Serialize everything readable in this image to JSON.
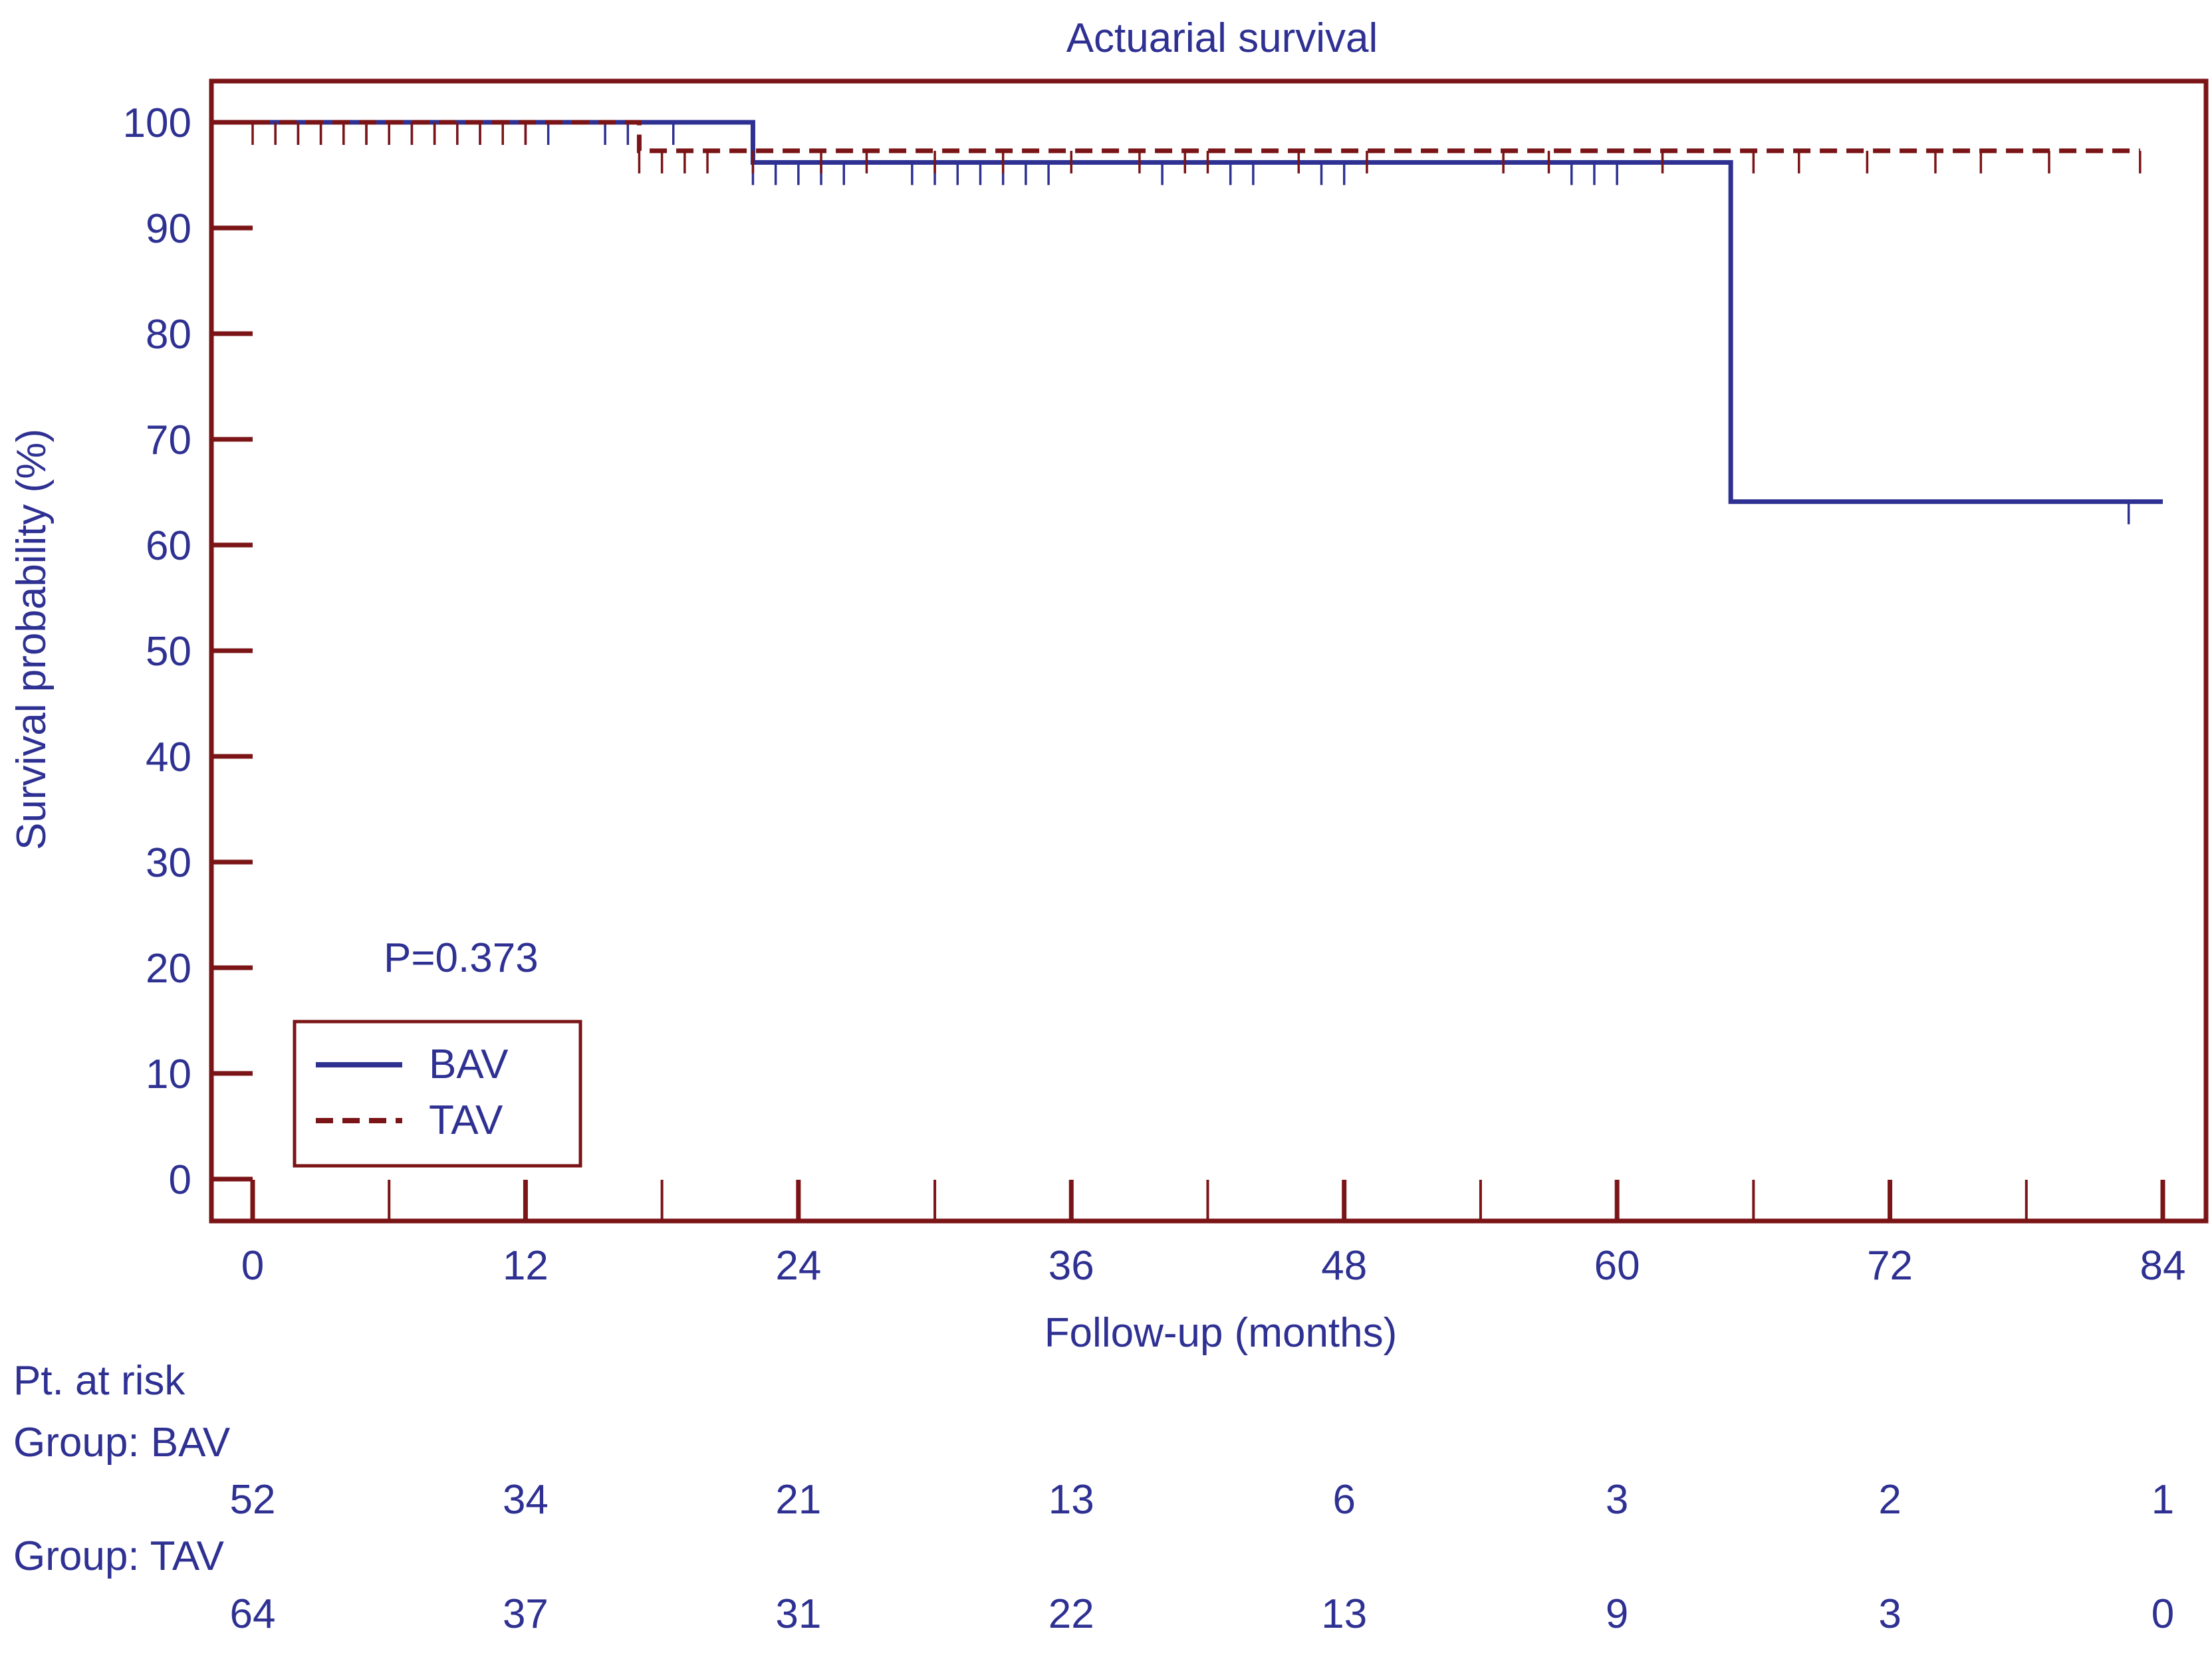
{
  "chart_data": {
    "type": "line",
    "subtype": "kaplan-meier",
    "title": "Actuarial survival",
    "xlabel": "Follow-up (months)",
    "ylabel": "Survival probability (%)",
    "xlim": [
      0,
      84
    ],
    "ylim": [
      0,
      100
    ],
    "x_ticks": [
      0,
      12,
      24,
      36,
      48,
      60,
      72,
      84
    ],
    "x_minor_ticks": [
      6,
      18,
      30,
      42,
      54,
      66,
      78
    ],
    "y_ticks": [
      0,
      10,
      20,
      30,
      40,
      50,
      60,
      70,
      80,
      90,
      100
    ],
    "grid": false,
    "annotation": "P=0.373",
    "legend": {
      "position": "bottom-left"
    },
    "series": [
      {
        "name": "BAV",
        "color": "#2e3192",
        "style": "solid",
        "steps": [
          [
            0,
            100
          ],
          [
            22,
            96.2
          ],
          [
            65,
            64.1
          ]
        ],
        "x_end": 84,
        "censored": [
          [
            1,
            100
          ],
          [
            2,
            100
          ],
          [
            3,
            100
          ],
          [
            4,
            100
          ],
          [
            5,
            100
          ],
          [
            6,
            100
          ],
          [
            7,
            100
          ],
          [
            8,
            100
          ],
          [
            9,
            100
          ],
          [
            10,
            100
          ],
          [
            11,
            100
          ],
          [
            12,
            100
          ],
          [
            13,
            100
          ],
          [
            15.5,
            100
          ],
          [
            16.5,
            100
          ],
          [
            18.5,
            100
          ],
          [
            22,
            96.2
          ],
          [
            23,
            96.2
          ],
          [
            24,
            96.2
          ],
          [
            25,
            96.2
          ],
          [
            26,
            96.2
          ],
          [
            29,
            96.2
          ],
          [
            30,
            96.2
          ],
          [
            31,
            96.2
          ],
          [
            32,
            96.2
          ],
          [
            33,
            96.2
          ],
          [
            34,
            96.2
          ],
          [
            35,
            96.2
          ],
          [
            40,
            96.2
          ],
          [
            43,
            96.2
          ],
          [
            44,
            96.2
          ],
          [
            47,
            96.2
          ],
          [
            48,
            96.2
          ],
          [
            58,
            96.2
          ],
          [
            59,
            96.2
          ],
          [
            60,
            96.2
          ],
          [
            82.5,
            64.1
          ]
        ]
      },
      {
        "name": "TAV",
        "color": "#7b1416",
        "style": "dashed",
        "steps": [
          [
            0,
            100
          ],
          [
            17,
            97.3
          ]
        ],
        "x_end": 83,
        "censored": [
          [
            0,
            100
          ],
          [
            1,
            100
          ],
          [
            2,
            100
          ],
          [
            3,
            100
          ],
          [
            4,
            100
          ],
          [
            5,
            100
          ],
          [
            6,
            100
          ],
          [
            7,
            100
          ],
          [
            8,
            100
          ],
          [
            9,
            100
          ],
          [
            10,
            100
          ],
          [
            11,
            100
          ],
          [
            12,
            100
          ],
          [
            17,
            97.3
          ],
          [
            18,
            97.3
          ],
          [
            19,
            97.3
          ],
          [
            20,
            97.3
          ],
          [
            22,
            97.3
          ],
          [
            25,
            97.3
          ],
          [
            27,
            97.3
          ],
          [
            30,
            97.3
          ],
          [
            33,
            97.3
          ],
          [
            36,
            97.3
          ],
          [
            39,
            97.3
          ],
          [
            41,
            97.3
          ],
          [
            42,
            97.3
          ],
          [
            46,
            97.3
          ],
          [
            49,
            97.3
          ],
          [
            55,
            97.3
          ],
          [
            57,
            97.3
          ],
          [
            62,
            97.3
          ],
          [
            66,
            97.3
          ],
          [
            68,
            97.3
          ],
          [
            71,
            97.3
          ],
          [
            74,
            97.3
          ],
          [
            76,
            97.3
          ],
          [
            79,
            97.3
          ],
          [
            83,
            97.3
          ]
        ]
      }
    ],
    "risk_table": {
      "header": "Pt. at risk",
      "groups": [
        {
          "label": "Group: BAV",
          "values": [
            "52",
            "34",
            "21",
            "13",
            "6",
            "3",
            "2",
            "1"
          ]
        },
        {
          "label": "Group: TAV",
          "values": [
            "64",
            "37",
            "31",
            "22",
            "13",
            "9",
            "3",
            "0"
          ]
        }
      ]
    }
  },
  "colors": {
    "frame": "#7b1416",
    "text": "#2e3192"
  }
}
